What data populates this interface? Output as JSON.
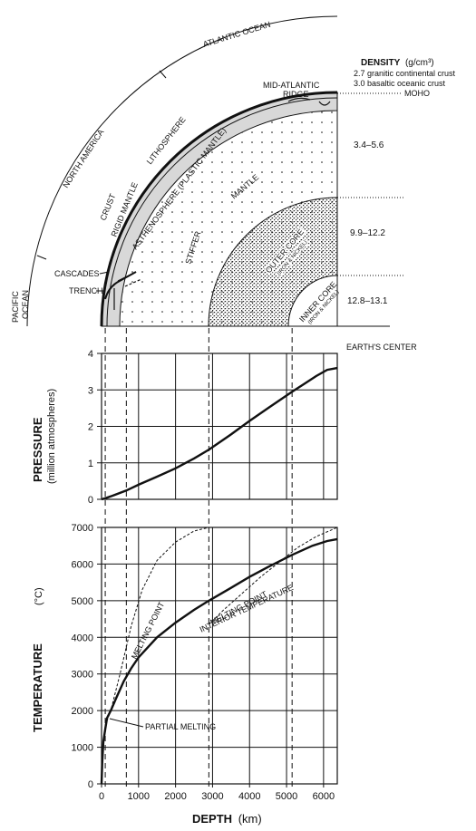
{
  "cross_section": {
    "density_header": "DENSITY",
    "density_unit": "(g/cm³)",
    "crust_densities": [
      "2.7 granitic continental crust",
      "3.0 basaltic oceanic crust"
    ],
    "moho": "MOHO",
    "mantle_density": "3.4–5.6",
    "outer_core_density": "9.9–12.2",
    "inner_core_density": "12.8–13.1",
    "earths_center": "EARTH'S CENTER",
    "atlantic_ocean": "ATLANTIC OCEAN",
    "north_america": "NORTH AMERICA",
    "pacific_ocean": [
      "PACIFIC",
      "OCEAN"
    ],
    "mid_atlantic_ridge": [
      "MID-ATLANTIC",
      "RIDGE"
    ],
    "lithosphere": "LITHOSPHERE",
    "rigid_mantle": "RIGID MANTLE",
    "crust": "CRUST",
    "asthenosphere": "ASTHENOSPHERE (PLASTIC MANTLE)",
    "mantle": "MANTLE",
    "stiffer": "STIFFER",
    "outer_core": "OUTER CORE",
    "outer_core_sub": "(IRON & NICKEL)",
    "inner_core": "INNER CORE",
    "inner_core_sub": "(IRON & NICKEL)",
    "cascades": "CASCADES",
    "trench": "TRENCH",
    "colors": {
      "ink": "#111111",
      "shell": "#d8d8d8",
      "core_dots": "#222222"
    }
  },
  "chart_data": [
    {
      "type": "line",
      "ylabel": "PRESSURE",
      "ylabel_sub": "(million atmospheres)",
      "xlim": [
        0,
        6371
      ],
      "ylim": [
        0,
        4
      ],
      "yticks": [
        "0",
        "1",
        "2",
        "3",
        "4"
      ],
      "grid": true,
      "series": [
        {
          "x": [
            0,
            100,
            300,
            670,
            1000,
            1500,
            2000,
            2500,
            2900,
            3500,
            4000,
            4500,
            5150,
            5500,
            5800,
            6100,
            6371
          ],
          "y": [
            0,
            0.03,
            0.1,
            0.24,
            0.4,
            0.62,
            0.85,
            1.12,
            1.36,
            1.78,
            2.15,
            2.5,
            2.95,
            3.18,
            3.38,
            3.55,
            3.6
          ]
        }
      ]
    },
    {
      "type": "line",
      "xlabel": "DEPTH",
      "xlabel_unit": "(km)",
      "ylabel": "TEMPERATURE",
      "ylabel_unit": "(°C)",
      "xlim": [
        0,
        6371
      ],
      "ylim": [
        0,
        7000
      ],
      "xticks": [
        "0",
        "1000",
        "2000",
        "3000",
        "4000",
        "5000",
        "6000"
      ],
      "yticks": [
        "0",
        "1000",
        "2000",
        "3000",
        "4000",
        "5000",
        "6000",
        "7000"
      ],
      "grid": true,
      "annotations": [
        "INTERIOR TEMPERATURE",
        "MELTING POINT",
        "MELTING POINT",
        "PARTIAL MELTING"
      ],
      "series": [
        {
          "style": "solid",
          "x": [
            0,
            20,
            50,
            100,
            150,
            250,
            400,
            600,
            800,
            1000,
            1500,
            2000,
            2500,
            2900,
            3500,
            4000,
            4500,
            5150,
            5700,
            6100,
            6371
          ],
          "y": [
            0,
            600,
            1150,
            1500,
            1800,
            2000,
            2350,
            2800,
            3150,
            3450,
            4000,
            4400,
            4750,
            5000,
            5350,
            5650,
            5920,
            6250,
            6500,
            6630,
            6680
          ]
        },
        {
          "style": "dotted",
          "x": [
            100,
            250,
            500,
            800,
            1100,
            1500,
            2000,
            2500,
            2900
          ],
          "y": [
            1600,
            2000,
            3000,
            4300,
            5300,
            6100,
            6600,
            6900,
            7000
          ]
        },
        {
          "style": "dotted",
          "x": [
            2900,
            3300,
            3800,
            4300,
            4800,
            5300,
            5800,
            6371
          ],
          "y": [
            4350,
            4750,
            5200,
            5650,
            6050,
            6450,
            6750,
            7000
          ]
        }
      ]
    }
  ]
}
